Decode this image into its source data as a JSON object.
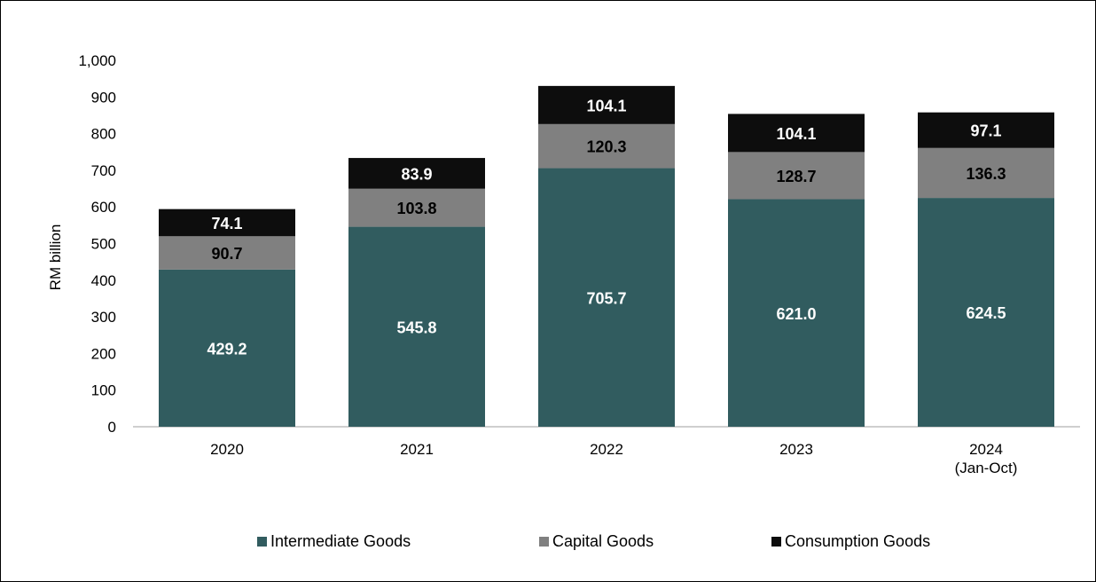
{
  "chart_data": {
    "type": "bar",
    "stacked": true,
    "title": "",
    "xlabel": "",
    "ylabel": "RM billion",
    "ylim": [
      0,
      1000
    ],
    "yticks": [
      "0",
      "100",
      "200",
      "300",
      "400",
      "500",
      "600",
      "700",
      "800",
      "900",
      "1,000"
    ],
    "categories": [
      [
        "2020"
      ],
      [
        "2021"
      ],
      [
        "2022"
      ],
      [
        "2023"
      ],
      [
        "2024",
        "(Jan-Oct)"
      ]
    ],
    "series": [
      {
        "name": "Intermediate Goods",
        "color": "#315c5f",
        "label_color": "#ffffff",
        "values": [
          429.2,
          545.8,
          705.7,
          621.0,
          624.5
        ],
        "labels": [
          "429.2",
          "545.8",
          "705.7",
          "621.0",
          "624.5"
        ]
      },
      {
        "name": "Capital Goods",
        "color": "#808080",
        "label_color": "#000000",
        "values": [
          90.7,
          103.8,
          120.3,
          128.7,
          136.3
        ],
        "labels": [
          "90.7",
          "103.8",
          "120.3",
          "128.7",
          "136.3"
        ]
      },
      {
        "name": "Consumption Goods",
        "color": "#0d0d0d",
        "label_color": "#ffffff",
        "values": [
          74.1,
          83.9,
          104.1,
          104.1,
          97.1
        ],
        "labels": [
          "74.1",
          "83.9",
          "104.1",
          "104.1",
          "97.1"
        ]
      }
    ],
    "grid": false,
    "legend_position": "bottom"
  },
  "legend": {
    "items": [
      {
        "label": "Intermediate Goods",
        "color": "#315c5f"
      },
      {
        "label": "Capital Goods",
        "color": "#808080"
      },
      {
        "label": "Consumption Goods",
        "color": "#0d0d0d"
      }
    ]
  }
}
